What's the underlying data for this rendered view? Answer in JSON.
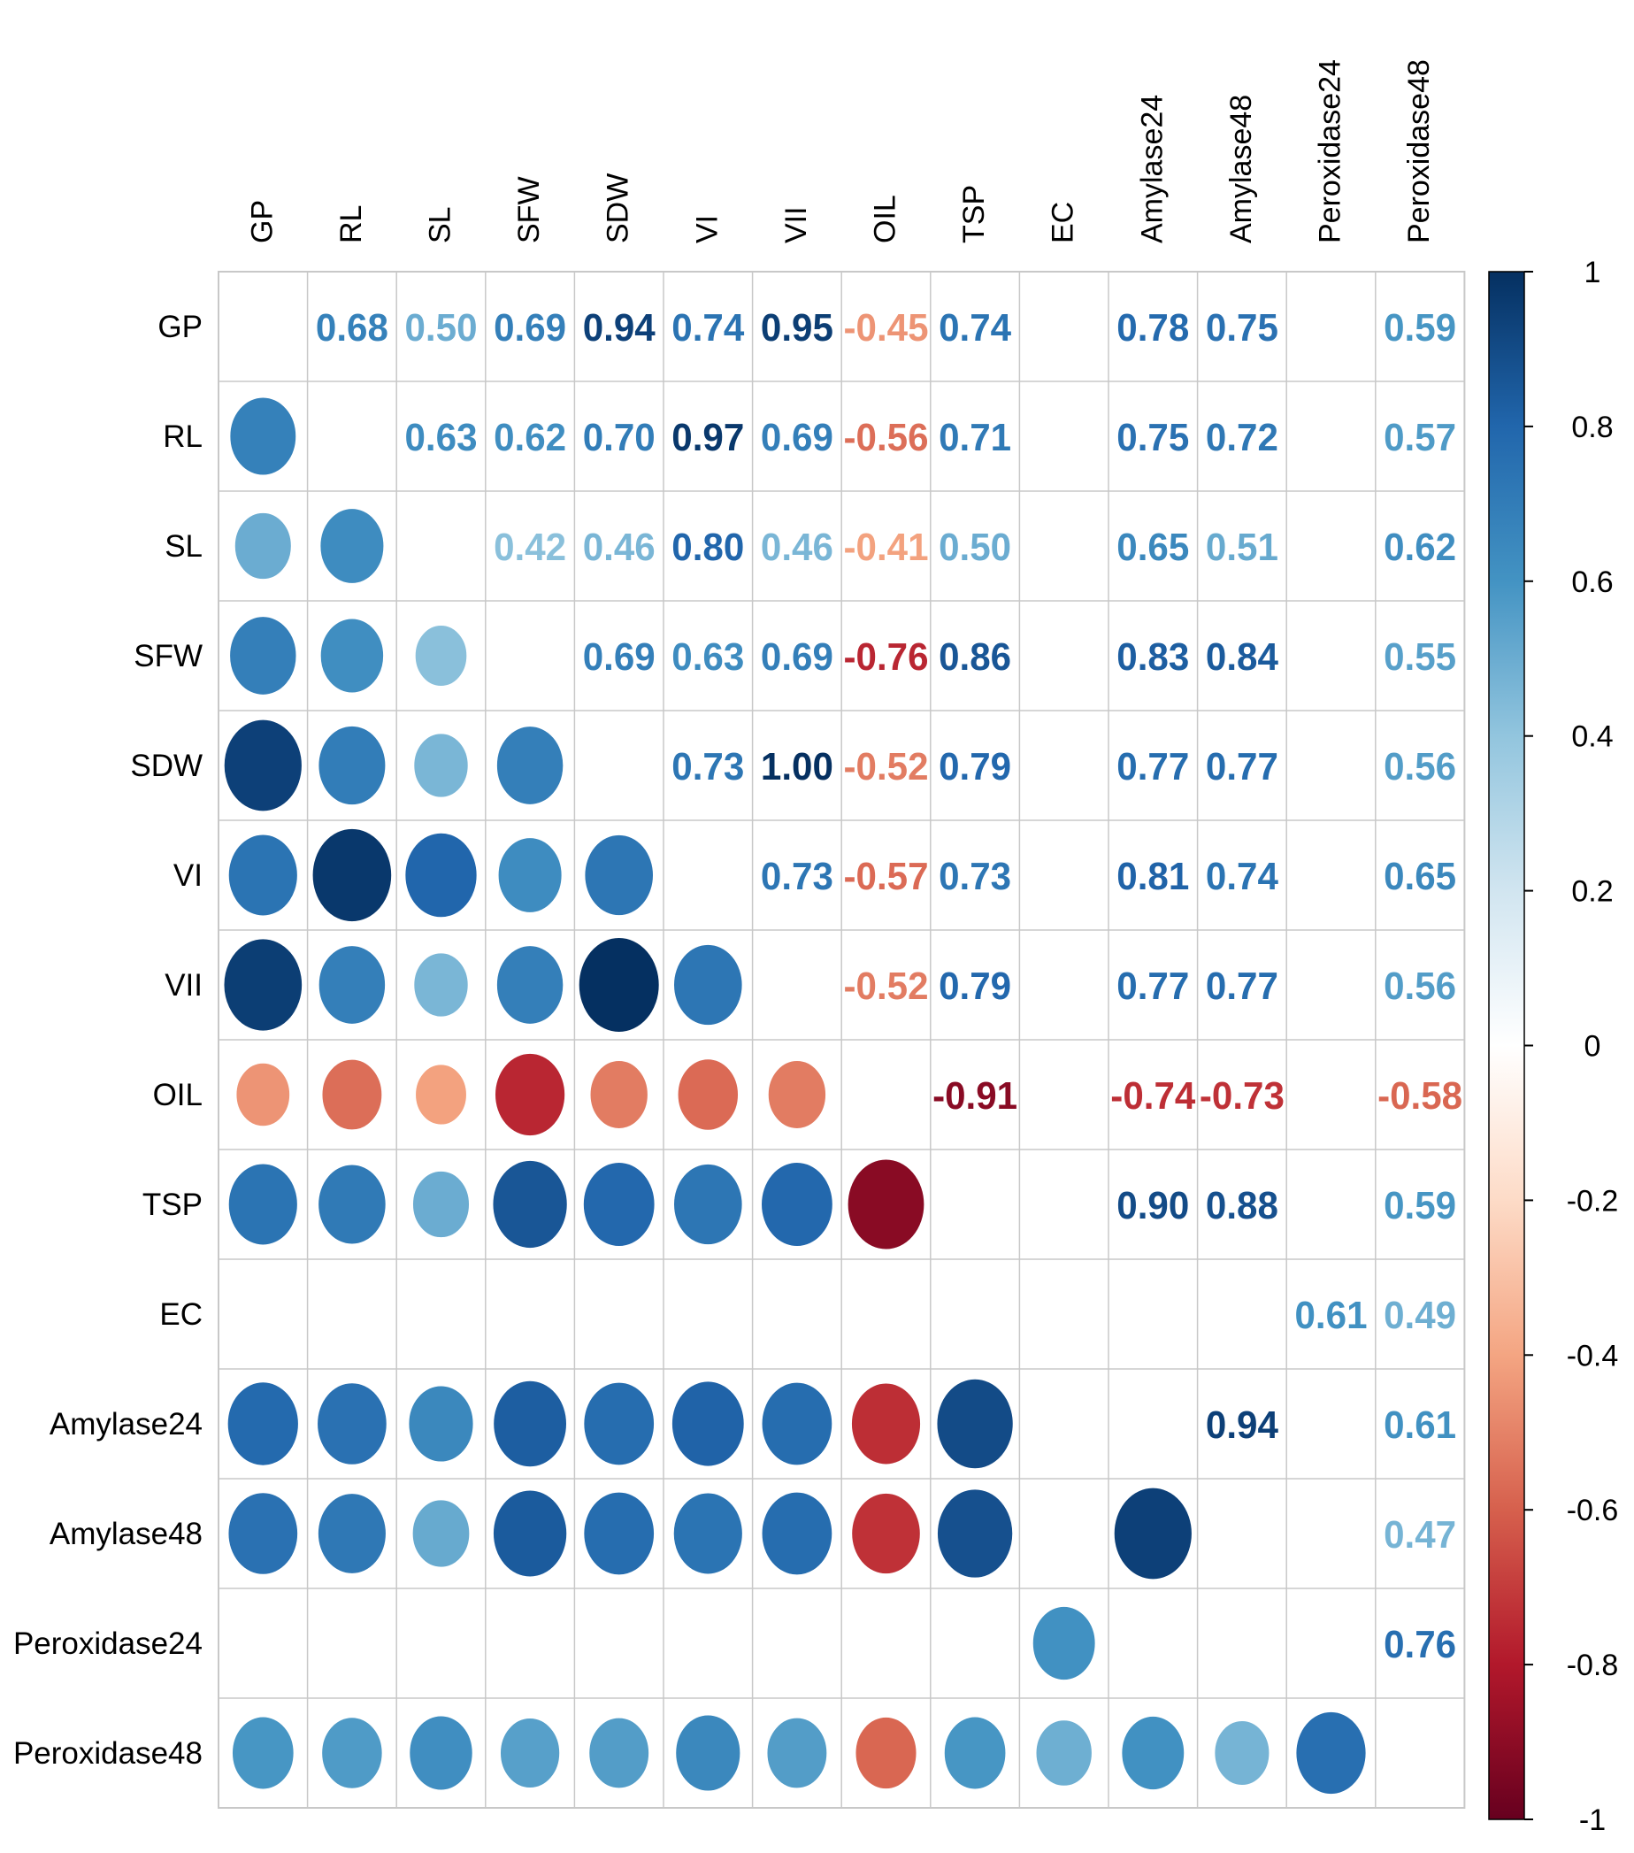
{
  "chart_data": {
    "type": "heatmap",
    "style": "correlation matrix: circles in lower triangle, numbers in upper triangle, blank cells not significant",
    "variables": [
      "GP",
      "RL",
      "SL",
      "SFW",
      "SDW",
      "VI",
      "VII",
      "OIL",
      "TSP",
      "EC",
      "Amylase24",
      "Amylase48",
      "Peroxidase24",
      "Peroxidase48"
    ],
    "row_labels": [
      "GP",
      "RL",
      "SL",
      "SFW",
      "SDW",
      "VI",
      "VII",
      "OIL",
      "TSP",
      "EC",
      "Amylase24",
      "Amylase48",
      "Peroxidase24",
      "Peroxidase48"
    ],
    "column_labels": [
      "GP",
      "RL",
      "SL",
      "SFW",
      "SDW",
      "VI",
      "VII",
      "OIL",
      "TSP",
      "EC",
      "Amylase24",
      "Amylase48",
      "Peroxidase24",
      "Peroxidase48"
    ],
    "upper_values": [
      {
        "row": 0,
        "col": 1,
        "value": 0.68,
        "label": "0.68"
      },
      {
        "row": 0,
        "col": 2,
        "value": 0.5,
        "label": "0.50"
      },
      {
        "row": 0,
        "col": 3,
        "value": 0.69,
        "label": "0.69"
      },
      {
        "row": 0,
        "col": 4,
        "value": 0.94,
        "label": "0.94"
      },
      {
        "row": 0,
        "col": 5,
        "value": 0.74,
        "label": "0.74"
      },
      {
        "row": 0,
        "col": 6,
        "value": 0.95,
        "label": "0.95"
      },
      {
        "row": 0,
        "col": 7,
        "value": -0.45,
        "label": "-0.45"
      },
      {
        "row": 0,
        "col": 8,
        "value": 0.74,
        "label": "0.74"
      },
      {
        "row": 0,
        "col": 10,
        "value": 0.78,
        "label": "0.78"
      },
      {
        "row": 0,
        "col": 11,
        "value": 0.75,
        "label": "0.75"
      },
      {
        "row": 0,
        "col": 13,
        "value": 0.59,
        "label": "0.59"
      },
      {
        "row": 1,
        "col": 2,
        "value": 0.63,
        "label": "0.63"
      },
      {
        "row": 1,
        "col": 3,
        "value": 0.62,
        "label": "0.62"
      },
      {
        "row": 1,
        "col": 4,
        "value": 0.7,
        "label": "0.70"
      },
      {
        "row": 1,
        "col": 5,
        "value": 0.97,
        "label": "0.97"
      },
      {
        "row": 1,
        "col": 6,
        "value": 0.69,
        "label": "0.69"
      },
      {
        "row": 1,
        "col": 7,
        "value": -0.56,
        "label": "-0.56"
      },
      {
        "row": 1,
        "col": 8,
        "value": 0.71,
        "label": "0.71"
      },
      {
        "row": 1,
        "col": 10,
        "value": 0.75,
        "label": "0.75"
      },
      {
        "row": 1,
        "col": 11,
        "value": 0.72,
        "label": "0.72"
      },
      {
        "row": 1,
        "col": 13,
        "value": 0.57,
        "label": "0.57"
      },
      {
        "row": 2,
        "col": 3,
        "value": 0.42,
        "label": "0.42"
      },
      {
        "row": 2,
        "col": 4,
        "value": 0.46,
        "label": "0.46"
      },
      {
        "row": 2,
        "col": 5,
        "value": 0.8,
        "label": "0.80"
      },
      {
        "row": 2,
        "col": 6,
        "value": 0.46,
        "label": "0.46"
      },
      {
        "row": 2,
        "col": 7,
        "value": -0.41,
        "label": "-0.41"
      },
      {
        "row": 2,
        "col": 8,
        "value": 0.5,
        "label": "0.50"
      },
      {
        "row": 2,
        "col": 10,
        "value": 0.65,
        "label": "0.65"
      },
      {
        "row": 2,
        "col": 11,
        "value": 0.51,
        "label": "0.51"
      },
      {
        "row": 2,
        "col": 13,
        "value": 0.62,
        "label": "0.62"
      },
      {
        "row": 3,
        "col": 4,
        "value": 0.69,
        "label": "0.69"
      },
      {
        "row": 3,
        "col": 5,
        "value": 0.63,
        "label": "0.63"
      },
      {
        "row": 3,
        "col": 6,
        "value": 0.69,
        "label": "0.69"
      },
      {
        "row": 3,
        "col": 7,
        "value": -0.76,
        "label": "-0.76"
      },
      {
        "row": 3,
        "col": 8,
        "value": 0.86,
        "label": "0.86"
      },
      {
        "row": 3,
        "col": 10,
        "value": 0.83,
        "label": "0.83"
      },
      {
        "row": 3,
        "col": 11,
        "value": 0.84,
        "label": "0.84"
      },
      {
        "row": 3,
        "col": 13,
        "value": 0.55,
        "label": "0.55"
      },
      {
        "row": 4,
        "col": 5,
        "value": 0.73,
        "label": "0.73"
      },
      {
        "row": 4,
        "col": 6,
        "value": 1.0,
        "label": "1.00"
      },
      {
        "row": 4,
        "col": 7,
        "value": -0.52,
        "label": "-0.52"
      },
      {
        "row": 4,
        "col": 8,
        "value": 0.79,
        "label": "0.79"
      },
      {
        "row": 4,
        "col": 10,
        "value": 0.77,
        "label": "0.77"
      },
      {
        "row": 4,
        "col": 11,
        "value": 0.77,
        "label": "0.77"
      },
      {
        "row": 4,
        "col": 13,
        "value": 0.56,
        "label": "0.56"
      },
      {
        "row": 5,
        "col": 6,
        "value": 0.73,
        "label": "0.73"
      },
      {
        "row": 5,
        "col": 7,
        "value": -0.57,
        "label": "-0.57"
      },
      {
        "row": 5,
        "col": 8,
        "value": 0.73,
        "label": "0.73"
      },
      {
        "row": 5,
        "col": 10,
        "value": 0.81,
        "label": "0.81"
      },
      {
        "row": 5,
        "col": 11,
        "value": 0.74,
        "label": "0.74"
      },
      {
        "row": 5,
        "col": 13,
        "value": 0.65,
        "label": "0.65"
      },
      {
        "row": 6,
        "col": 7,
        "value": -0.52,
        "label": "-0.52"
      },
      {
        "row": 6,
        "col": 8,
        "value": 0.79,
        "label": "0.79"
      },
      {
        "row": 6,
        "col": 10,
        "value": 0.77,
        "label": "0.77"
      },
      {
        "row": 6,
        "col": 11,
        "value": 0.77,
        "label": "0.77"
      },
      {
        "row": 6,
        "col": 13,
        "value": 0.56,
        "label": "0.56"
      },
      {
        "row": 7,
        "col": 8,
        "value": -0.91,
        "label": "-0.91"
      },
      {
        "row": 7,
        "col": 10,
        "value": -0.74,
        "label": "-0.74"
      },
      {
        "row": 7,
        "col": 11,
        "value": -0.73,
        "label": "-0.73"
      },
      {
        "row": 7,
        "col": 13,
        "value": -0.58,
        "label": "-0.58"
      },
      {
        "row": 8,
        "col": 10,
        "value": 0.9,
        "label": "0.90"
      },
      {
        "row": 8,
        "col": 11,
        "value": 0.88,
        "label": "0.88"
      },
      {
        "row": 8,
        "col": 13,
        "value": 0.59,
        "label": "0.59"
      },
      {
        "row": 9,
        "col": 12,
        "value": 0.61,
        "label": "0.61"
      },
      {
        "row": 9,
        "col": 13,
        "value": 0.49,
        "label": "0.49"
      },
      {
        "row": 10,
        "col": 11,
        "value": 0.94,
        "label": "0.94"
      },
      {
        "row": 10,
        "col": 13,
        "value": 0.61,
        "label": "0.61"
      },
      {
        "row": 11,
        "col": 13,
        "value": 0.47,
        "label": "0.47"
      },
      {
        "row": 12,
        "col": 13,
        "value": 0.76,
        "label": "0.76"
      }
    ],
    "lower_circles": [
      {
        "row": 1,
        "col": 0,
        "value": 0.68
      },
      {
        "row": 2,
        "col": 0,
        "value": 0.5
      },
      {
        "row": 2,
        "col": 1,
        "value": 0.63
      },
      {
        "row": 3,
        "col": 0,
        "value": 0.69
      },
      {
        "row": 3,
        "col": 1,
        "value": 0.62
      },
      {
        "row": 3,
        "col": 2,
        "value": 0.42
      },
      {
        "row": 4,
        "col": 0,
        "value": 0.94
      },
      {
        "row": 4,
        "col": 1,
        "value": 0.7
      },
      {
        "row": 4,
        "col": 2,
        "value": 0.46
      },
      {
        "row": 4,
        "col": 3,
        "value": 0.69
      },
      {
        "row": 5,
        "col": 0,
        "value": 0.74
      },
      {
        "row": 5,
        "col": 1,
        "value": 0.97
      },
      {
        "row": 5,
        "col": 2,
        "value": 0.8
      },
      {
        "row": 5,
        "col": 3,
        "value": 0.63
      },
      {
        "row": 5,
        "col": 4,
        "value": 0.73
      },
      {
        "row": 6,
        "col": 0,
        "value": 0.95
      },
      {
        "row": 6,
        "col": 1,
        "value": 0.69
      },
      {
        "row": 6,
        "col": 2,
        "value": 0.46
      },
      {
        "row": 6,
        "col": 3,
        "value": 0.69
      },
      {
        "row": 6,
        "col": 4,
        "value": 1.0
      },
      {
        "row": 6,
        "col": 5,
        "value": 0.73
      },
      {
        "row": 7,
        "col": 0,
        "value": -0.45
      },
      {
        "row": 7,
        "col": 1,
        "value": -0.56
      },
      {
        "row": 7,
        "col": 2,
        "value": -0.41
      },
      {
        "row": 7,
        "col": 3,
        "value": -0.76
      },
      {
        "row": 7,
        "col": 4,
        "value": -0.52
      },
      {
        "row": 7,
        "col": 5,
        "value": -0.57
      },
      {
        "row": 7,
        "col": 6,
        "value": -0.52
      },
      {
        "row": 8,
        "col": 0,
        "value": 0.74
      },
      {
        "row": 8,
        "col": 1,
        "value": 0.71
      },
      {
        "row": 8,
        "col": 2,
        "value": 0.5
      },
      {
        "row": 8,
        "col": 3,
        "value": 0.86
      },
      {
        "row": 8,
        "col": 4,
        "value": 0.79
      },
      {
        "row": 8,
        "col": 5,
        "value": 0.73
      },
      {
        "row": 8,
        "col": 6,
        "value": 0.79
      },
      {
        "row": 8,
        "col": 7,
        "value": -0.91
      },
      {
        "row": 10,
        "col": 0,
        "value": 0.78
      },
      {
        "row": 10,
        "col": 1,
        "value": 0.75
      },
      {
        "row": 10,
        "col": 2,
        "value": 0.65
      },
      {
        "row": 10,
        "col": 3,
        "value": 0.83
      },
      {
        "row": 10,
        "col": 4,
        "value": 0.77
      },
      {
        "row": 10,
        "col": 5,
        "value": 0.81
      },
      {
        "row": 10,
        "col": 6,
        "value": 0.77
      },
      {
        "row": 10,
        "col": 7,
        "value": -0.74
      },
      {
        "row": 10,
        "col": 8,
        "value": 0.9
      },
      {
        "row": 11,
        "col": 0,
        "value": 0.75
      },
      {
        "row": 11,
        "col": 1,
        "value": 0.72
      },
      {
        "row": 11,
        "col": 2,
        "value": 0.51
      },
      {
        "row": 11,
        "col": 3,
        "value": 0.84
      },
      {
        "row": 11,
        "col": 4,
        "value": 0.77
      },
      {
        "row": 11,
        "col": 5,
        "value": 0.74
      },
      {
        "row": 11,
        "col": 6,
        "value": 0.77
      },
      {
        "row": 11,
        "col": 7,
        "value": -0.73
      },
      {
        "row": 11,
        "col": 8,
        "value": 0.88
      },
      {
        "row": 11,
        "col": 10,
        "value": 0.94
      },
      {
        "row": 12,
        "col": 9,
        "value": 0.61
      },
      {
        "row": 13,
        "col": 0,
        "value": 0.59
      },
      {
        "row": 13,
        "col": 1,
        "value": 0.57
      },
      {
        "row": 13,
        "col": 2,
        "value": 0.62
      },
      {
        "row": 13,
        "col": 3,
        "value": 0.55
      },
      {
        "row": 13,
        "col": 4,
        "value": 0.56
      },
      {
        "row": 13,
        "col": 5,
        "value": 0.65
      },
      {
        "row": 13,
        "col": 6,
        "value": 0.56
      },
      {
        "row": 13,
        "col": 7,
        "value": -0.58
      },
      {
        "row": 13,
        "col": 8,
        "value": 0.59
      },
      {
        "row": 13,
        "col": 9,
        "value": 0.49
      },
      {
        "row": 13,
        "col": 10,
        "value": 0.61
      },
      {
        "row": 13,
        "col": 11,
        "value": 0.47
      },
      {
        "row": 13,
        "col": 12,
        "value": 0.76
      }
    ],
    "color_scale": {
      "range": [
        -1,
        1
      ],
      "ticks": [
        "1",
        "0.8",
        "0.6",
        "0.4",
        "0.2",
        "0",
        "-0.2",
        "-0.4",
        "-0.6",
        "-0.8",
        "-1"
      ],
      "tick_values": [
        1,
        0.8,
        0.6,
        0.4,
        0.2,
        0,
        -0.2,
        -0.4,
        -0.6,
        -0.8,
        -1
      ],
      "palette": [
        "#67001F",
        "#B2182B",
        "#D6604D",
        "#F4A582",
        "#FDDBC7",
        "#FFFFFF",
        "#D1E5F0",
        "#92C5DE",
        "#4393C3",
        "#2166AC",
        "#053061"
      ]
    },
    "grid_color": "#C8C8C8"
  }
}
